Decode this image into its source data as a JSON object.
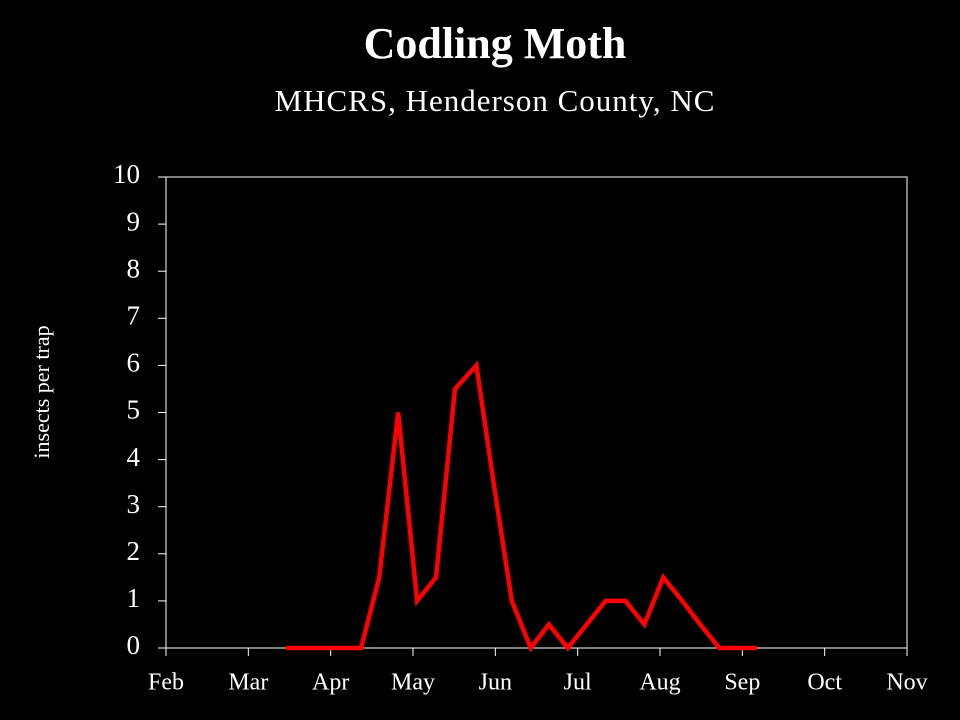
{
  "chart_data": {
    "type": "line",
    "title": "Codling Moth",
    "subtitle": "MHCRS, Henderson County, NC",
    "y_label": "insects per trap",
    "x": [
      1.46,
      1.69,
      1.92,
      2.14,
      2.37,
      2.59,
      2.82,
      3.05,
      3.28,
      3.51,
      3.77,
      3.98,
      4.2,
      4.43,
      4.65,
      4.88,
      5.11,
      5.34,
      5.58,
      5.81,
      6.04,
      6.27,
      6.49,
      6.72,
      6.95,
      7.18
    ],
    "values": [
      0,
      0,
      0,
      0,
      0,
      1.5,
      5,
      1,
      1.5,
      5.5,
      6,
      3.5,
      1,
      0,
      0.5,
      0,
      0.5,
      1,
      1,
      0.5,
      1.5,
      1,
      0.5,
      0,
      0,
      0
    ],
    "color": "#ff0000",
    "xlim": [
      0,
      9
    ],
    "xticks": [
      {
        "value": 0,
        "label": "Feb"
      },
      {
        "value": 1,
        "label": "Mar"
      },
      {
        "value": 2,
        "label": "Apr"
      },
      {
        "value": 3,
        "label": "May"
      },
      {
        "value": 4,
        "label": "Jun"
      },
      {
        "value": 5,
        "label": "Jul"
      },
      {
        "value": 6,
        "label": "Aug"
      },
      {
        "value": 7,
        "label": "Sep"
      },
      {
        "value": 8,
        "label": "Oct"
      },
      {
        "value": 9,
        "label": "Nov"
      }
    ],
    "ylim": [
      0,
      10
    ],
    "yticks": [
      0,
      1,
      2,
      3,
      4,
      5,
      6,
      7,
      8,
      9,
      10
    ]
  }
}
